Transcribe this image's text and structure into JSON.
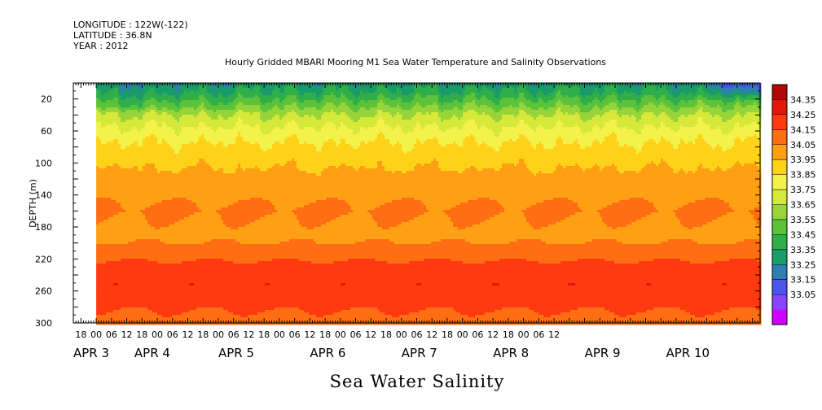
{
  "header": {
    "longitude": "LONGITUDE : 122W(-122)",
    "latitude": "LATITUDE : 36.8N",
    "year": "YEAR : 2012"
  },
  "chart_data": {
    "type": "heatmap",
    "title": "Hourly Gridded MBARI Mooring M1 Sea Water Temperature and Salinity Observations",
    "xlabel": "Sea Water Salinity",
    "ylabel": "DEPTH (m)",
    "x_range_hours": [
      -9,
      261
    ],
    "data_start_hour": 0,
    "y_range": [
      0,
      300
    ],
    "y_reversed": true,
    "x_tick_labels": [
      "18",
      "00",
      "06",
      "12",
      "18",
      "00",
      "06",
      "12",
      "18",
      "00",
      "06",
      "12",
      "18",
      "00",
      "06",
      "12",
      "18",
      "00",
      "06",
      "12",
      "18",
      "00",
      "06",
      "12",
      "18",
      "00",
      "06",
      "12",
      "18",
      "00",
      "06",
      "12"
    ],
    "x_tick_hours": [
      -6,
      0,
      6,
      12,
      18,
      24,
      30,
      36,
      42,
      48,
      54,
      60,
      66,
      72,
      78,
      84,
      90,
      96,
      102,
      108,
      114,
      120,
      126,
      132,
      138,
      144,
      150,
      156,
      162,
      168,
      174,
      180
    ],
    "day_labels": [
      "APR  3",
      "APR  4",
      "APR  5",
      "APR  6",
      "APR  7",
      "APR  8",
      "APR  9",
      "APR 10"
    ],
    "day_label_hours": [
      -9,
      15,
      48,
      84,
      120,
      156,
      192,
      224
    ],
    "y_tick_labels": [
      "20",
      "60",
      "100",
      "140",
      "180",
      "220",
      "260",
      "300"
    ],
    "y_ticks": [
      20,
      60,
      100,
      140,
      180,
      220,
      260,
      300
    ],
    "colorbar_levels": [
      33.05,
      33.15,
      33.25,
      33.35,
      33.45,
      33.55,
      33.65,
      33.75,
      33.85,
      33.95,
      34.05,
      34.15,
      34.25,
      34.35
    ],
    "colorbar_labels": [
      "34.35",
      "34.25",
      "34.15",
      "34.05",
      "33.95",
      "33.85",
      "33.75",
      "33.65",
      "33.55",
      "33.45",
      "33.35",
      "33.25",
      "33.15",
      "33.05"
    ],
    "colors": [
      "#d000ff",
      "#8844ff",
      "#4b55e8",
      "#2e7fb0",
      "#1a9b6a",
      "#2fae4a",
      "#5cc23a",
      "#96d43a",
      "#d6e83a",
      "#f2f24a",
      "#ffd21a",
      "#ffa014",
      "#ff6e12",
      "#ff3a10",
      "#e01808",
      "#b00808"
    ],
    "depth_profile": [
      [
        0,
        33.4
      ],
      [
        10,
        33.45
      ],
      [
        20,
        33.55
      ],
      [
        30,
        33.65
      ],
      [
        40,
        33.75
      ],
      [
        50,
        33.82
      ],
      [
        60,
        33.88
      ],
      [
        70,
        33.93
      ],
      [
        80,
        33.97
      ],
      [
        90,
        34.0
      ],
      [
        100,
        34.03
      ],
      [
        110,
        34.06
      ],
      [
        120,
        34.09
      ],
      [
        130,
        34.12
      ],
      [
        140,
        34.13
      ],
      [
        150,
        34.15
      ],
      [
        160,
        34.16
      ],
      [
        170,
        34.15
      ],
      [
        180,
        34.14
      ],
      [
        190,
        34.13
      ],
      [
        200,
        34.15
      ],
      [
        210,
        34.2
      ],
      [
        220,
        34.24
      ],
      [
        230,
        34.28
      ],
      [
        240,
        34.31
      ],
      [
        250,
        34.34
      ],
      [
        260,
        34.33
      ],
      [
        270,
        34.3
      ],
      [
        280,
        34.26
      ],
      [
        290,
        34.24
      ],
      [
        300,
        34.23
      ]
    ]
  }
}
